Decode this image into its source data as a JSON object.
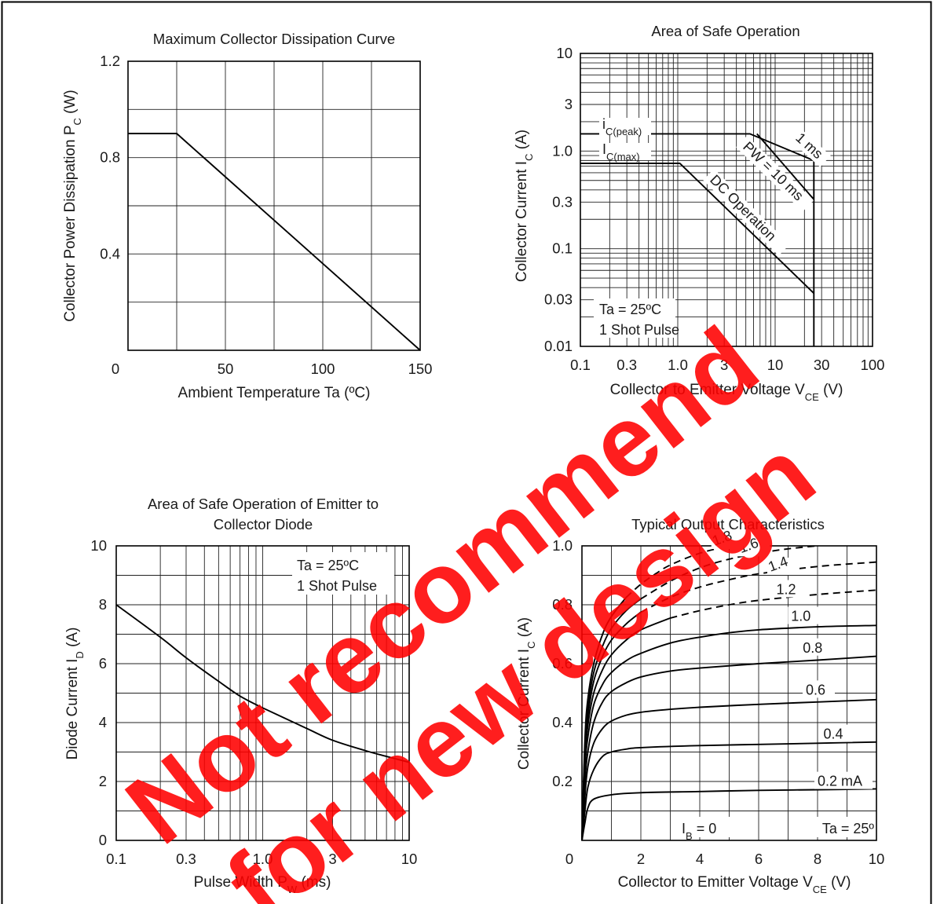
{
  "watermark": {
    "line1": "Not recommend",
    "line2": "for new design",
    "color": "#ff0000"
  },
  "chart_data": [
    {
      "type": "line",
      "title": "Maximum Collector Dissipation Curve",
      "xlabel": "Ambient Temperature  Ta  (ºC)",
      "ylabel_main": "Collector Power Dissipation P",
      "ylabel_sub": "C",
      "ylabel_tail": "  (W)",
      "xlim": [
        0,
        150
      ],
      "ylim": [
        0,
        1.2
      ],
      "x_ticks": [
        "0",
        "50",
        "100",
        "150"
      ],
      "x_tick_values": [
        0,
        50,
        100,
        150
      ],
      "y_ticks": [
        "0.4",
        "0.8",
        "1.2"
      ],
      "y_tick_values": [
        0.4,
        0.8,
        1.2
      ],
      "series": [
        {
          "x": [
            0,
            25,
            150
          ],
          "y": [
            0.9,
            0.9,
            0
          ]
        }
      ]
    },
    {
      "type": "line",
      "title": "Area of Safe Operation",
      "xlabel_main": "Collector to Emitter Voltage  V",
      "xlabel_sub": "CE",
      "xlabel_tail": "  (V)",
      "ylabel_main": "Collector Current  I",
      "ylabel_sub": "C",
      "ylabel_tail": "  (A)",
      "xscale": "log",
      "yscale": "log",
      "xlim": [
        0.1,
        100
      ],
      "ylim": [
        0.01,
        10
      ],
      "x_ticks": [
        "0.1",
        "0.3",
        "1.0",
        "3",
        "10",
        "30",
        "100"
      ],
      "x_tick_values": [
        0.1,
        0.3,
        1,
        3,
        10,
        30,
        100
      ],
      "y_ticks": [
        "0.01",
        "0.03",
        "0.1",
        "0.3",
        "1.0",
        "3",
        "10"
      ],
      "y_tick_values": [
        0.01,
        0.03,
        0.1,
        0.3,
        1,
        3,
        10
      ],
      "annotations": [
        {
          "main": "i",
          "sub": "C(peak)"
        },
        {
          "main": "I",
          "sub": "C(max)"
        },
        {
          "main": "1 ms"
        },
        {
          "main": "PW = 10 ms"
        },
        {
          "main": "DC Operation"
        },
        {
          "main": "Ta = 25ºC"
        },
        {
          "main": "1 Shot Pulse"
        }
      ],
      "series": [
        {
          "x": [
            0.1,
            2.5,
            5.5,
            25,
            25
          ],
          "y": [
            1.5,
            1.5,
            1.5,
            0.8,
            0.01
          ]
        },
        {
          "x": [
            6.5,
            25
          ],
          "y": [
            1.5,
            0.32
          ]
        },
        {
          "x": [
            0.1,
            1.05,
            25
          ],
          "y": [
            0.75,
            0.75,
            0.035
          ]
        }
      ]
    },
    {
      "type": "line",
      "title_line1": "Area of Safe Operation of Emitter to",
      "title_line2": "Collector Diode",
      "xlabel_main": "Pulse Width  P",
      "xlabel_sub": "W",
      "xlabel_tail": "  (ms)",
      "ylabel_main": "Diode Current  I",
      "ylabel_sub": "D",
      "ylabel_tail": "  (A)",
      "xscale": "log",
      "xlim": [
        0.1,
        10
      ],
      "ylim": [
        0,
        10
      ],
      "x_ticks": [
        "0.1",
        "0.3",
        "1.0",
        "3",
        "10"
      ],
      "x_tick_values": [
        0.1,
        0.3,
        1,
        3,
        10
      ],
      "y_ticks": [
        "0",
        "2",
        "4",
        "6",
        "8",
        "10"
      ],
      "y_tick_values": [
        0,
        2,
        4,
        6,
        8,
        10
      ],
      "annotations": [
        {
          "main": "Ta = 25ºC"
        },
        {
          "main": "1 Shot Pulse"
        }
      ],
      "series": [
        {
          "x": [
            0.1,
            0.2,
            0.3,
            0.5,
            0.7,
            1,
            2,
            3,
            5,
            7,
            10
          ],
          "y": [
            8,
            6.9,
            6.2,
            5.4,
            4.9,
            4.5,
            3.8,
            3.4,
            3.05,
            2.85,
            2.65
          ]
        }
      ]
    },
    {
      "type": "line",
      "title": "Typical Output Characteristics",
      "xlabel_main": "Collector to Emitter Voltage  V",
      "xlabel_sub": "CE",
      "xlabel_tail": "  (V)",
      "ylabel_main": "Collector Current  I",
      "ylabel_sub": "C",
      "ylabel_tail": "  (A)",
      "xlim": [
        0,
        10
      ],
      "ylim": [
        0,
        1.0
      ],
      "x_ticks": [
        "0",
        "2",
        "4",
        "6",
        "8",
        "10"
      ],
      "x_tick_values": [
        0,
        2,
        4,
        6,
        8,
        10
      ],
      "y_ticks": [
        "0.2",
        "0.4",
        "0.6",
        "0.8",
        "1.0"
      ],
      "y_tick_values": [
        0.2,
        0.4,
        0.6,
        0.8,
        1.0
      ],
      "annotations": [
        {
          "main": "I",
          "sub": "B",
          "tail": " = 0"
        },
        {
          "main": "Ta = 25º"
        }
      ],
      "series": [
        {
          "name": "0.2 mA",
          "x": [
            0,
            0.1,
            0.2,
            0.4,
            1,
            2,
            4,
            6,
            8,
            10
          ],
          "y": [
            0,
            0.06,
            0.11,
            0.14,
            0.155,
            0.162,
            0.166,
            0.17,
            0.172,
            0.175
          ]
        },
        {
          "name": "0.4",
          "x": [
            0,
            0.1,
            0.2,
            0.4,
            0.7,
            1,
            1.5,
            2,
            4,
            6,
            8,
            10
          ],
          "y": [
            0,
            0.1,
            0.18,
            0.24,
            0.285,
            0.3,
            0.31,
            0.315,
            0.322,
            0.326,
            0.33,
            0.334
          ]
        },
        {
          "name": "0.6",
          "x": [
            0,
            0.1,
            0.2,
            0.4,
            0.7,
            1,
            1.5,
            2,
            3,
            4,
            6,
            8,
            10
          ],
          "y": [
            0,
            0.15,
            0.25,
            0.33,
            0.38,
            0.405,
            0.425,
            0.435,
            0.445,
            0.452,
            0.462,
            0.47,
            0.478
          ]
        },
        {
          "name": "0.8",
          "x": [
            0,
            0.1,
            0.2,
            0.4,
            0.7,
            1,
            1.5,
            2,
            3,
            4,
            6,
            8,
            10
          ],
          "y": [
            0,
            0.2,
            0.3,
            0.4,
            0.47,
            0.505,
            0.535,
            0.555,
            0.575,
            0.585,
            0.6,
            0.612,
            0.625
          ]
        },
        {
          "name": "1.0",
          "x": [
            0,
            0.1,
            0.2,
            0.4,
            0.7,
            1,
            1.5,
            2,
            3,
            4,
            5,
            6,
            8,
            10
          ],
          "y": [
            0,
            0.24,
            0.35,
            0.46,
            0.53,
            0.57,
            0.61,
            0.635,
            0.67,
            0.69,
            0.705,
            0.715,
            0.725,
            0.73
          ]
        },
        {
          "name": "1.2",
          "x": [
            0,
            0.1,
            0.2,
            0.4,
            0.7,
            1,
            1.5,
            2,
            3,
            4,
            5,
            6,
            8,
            10
          ],
          "y": [
            0,
            0.27,
            0.39,
            0.5,
            0.58,
            0.63,
            0.68,
            0.715,
            0.755,
            0.78,
            0.8,
            0.815,
            0.835,
            0.85
          ]
        },
        {
          "name": "1.4",
          "x": [
            0,
            0.1,
            0.2,
            0.4,
            0.7,
            1,
            1.5,
            2,
            3,
            4,
            5,
            6,
            8,
            10
          ],
          "y": [
            0,
            0.3,
            0.42,
            0.54,
            0.625,
            0.68,
            0.735,
            0.775,
            0.825,
            0.86,
            0.885,
            0.905,
            0.93,
            0.945
          ]
        },
        {
          "name": "1.6",
          "x": [
            0,
            0.1,
            0.2,
            0.4,
            0.7,
            1,
            1.5,
            2,
            3,
            4,
            5,
            6,
            7,
            8
          ],
          "y": [
            0,
            0.32,
            0.45,
            0.57,
            0.66,
            0.72,
            0.78,
            0.82,
            0.88,
            0.925,
            0.955,
            0.975,
            0.99,
            1.0
          ]
        },
        {
          "name": "1.8",
          "x": [
            0,
            0.1,
            0.2,
            0.4,
            0.7,
            1,
            1.5,
            2,
            2.5,
            3,
            4,
            5
          ],
          "y": [
            0,
            0.34,
            0.48,
            0.6,
            0.7,
            0.76,
            0.825,
            0.87,
            0.905,
            0.935,
            0.975,
            1.0
          ]
        }
      ]
    }
  ]
}
